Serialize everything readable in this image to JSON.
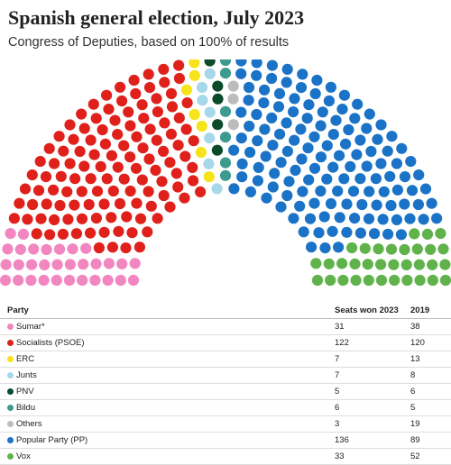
{
  "title": "Spanish general election, July 2023",
  "subtitle": "Congress of Deputies, based on 100% of results",
  "table": {
    "headers": {
      "party": "Party",
      "seats": "Seats won 2023",
      "prev": "2019"
    },
    "rows": [
      {
        "party": "Sumar*",
        "seats": "31",
        "prev": "38",
        "color": "#f186c0"
      },
      {
        "party": "Socialists (PSOE)",
        "seats": "122",
        "prev": "120",
        "color": "#e0201b"
      },
      {
        "party": "ERC",
        "seats": "7",
        "prev": "13",
        "color": "#f6e319"
      },
      {
        "party": "Junts",
        "seats": "7",
        "prev": "8",
        "color": "#a6d8ea"
      },
      {
        "party": "PNV",
        "seats": "5",
        "prev": "6",
        "color": "#0b4a2b"
      },
      {
        "party": "Bildu",
        "seats": "6",
        "prev": "5",
        "color": "#3d9a8e"
      },
      {
        "party": "Others",
        "seats": "3",
        "prev": "19",
        "color": "#bcbcbc"
      },
      {
        "party": "Popular Party (PP)",
        "seats": "136",
        "prev": "89",
        "color": "#1a73c6"
      },
      {
        "party": "Vox",
        "seats": "33",
        "prev": "52",
        "color": "#5fb34a"
      }
    ]
  },
  "chart_data": {
    "type": "parliament",
    "total_seats": 350,
    "series": [
      {
        "name": "Sumar*",
        "value": 31,
        "color": "#f186c0"
      },
      {
        "name": "Socialists (PSOE)",
        "value": 122,
        "color": "#e0201b"
      },
      {
        "name": "ERC",
        "value": 7,
        "color": "#f6e319"
      },
      {
        "name": "Junts",
        "value": 7,
        "color": "#a6d8ea"
      },
      {
        "name": "PNV",
        "value": 5,
        "color": "#0b4a2b"
      },
      {
        "name": "Bildu",
        "value": 6,
        "color": "#3d9a8e"
      },
      {
        "name": "Others",
        "value": 3,
        "color": "#bcbcbc"
      },
      {
        "name": "Popular Party (PP)",
        "value": 136,
        "color": "#1a73c6"
      },
      {
        "name": "Vox",
        "value": 33,
        "color": "#5fb34a"
      }
    ]
  }
}
